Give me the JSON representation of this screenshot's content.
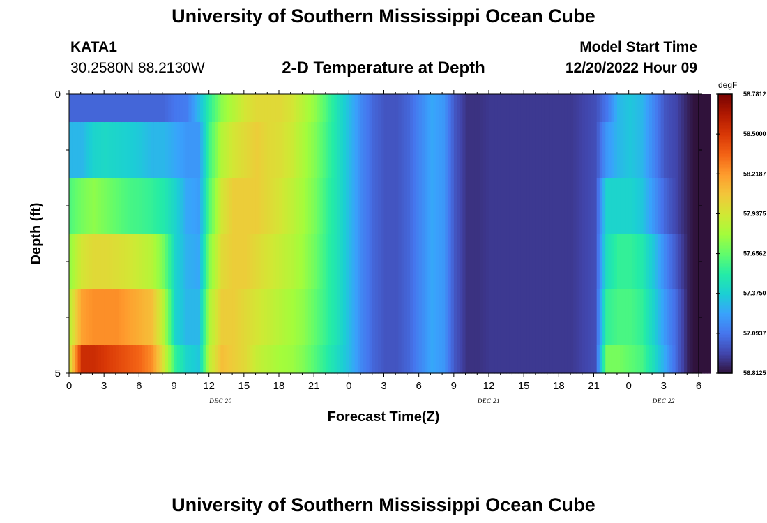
{
  "header": {
    "title": "University of Southern Mississippi Ocean Cube",
    "station": "KATA1",
    "coords": "30.2580N  88.2130W",
    "subtitle": "2-D Temperature at Depth",
    "model_start_label": "Model Start Time",
    "model_start_value": "12/20/2022 Hour 09"
  },
  "footer": {
    "title": "University of Southern Mississippi Ocean Cube"
  },
  "chart_data": {
    "type": "heatmap",
    "xlabel": "Forecast Time(Z)",
    "ylabel": "Depth (ft)",
    "x_range_hours": [
      0,
      54
    ],
    "y_ticks": [
      {
        "value": 0,
        "label": "0"
      },
      {
        "value": 5,
        "label": "5"
      }
    ],
    "x_ticks": [
      "0",
      "3",
      "6",
      "9",
      "12",
      "15",
      "18",
      "21",
      "0",
      "3",
      "6",
      "9",
      "12",
      "15",
      "18",
      "21",
      "0",
      "3",
      "6"
    ],
    "date_labels": [
      {
        "hour": 13,
        "label": "DEC 20"
      },
      {
        "hour": 36,
        "label": "DEC 21"
      },
      {
        "hour": 51,
        "label": "DEC 22"
      }
    ],
    "colorbar": {
      "units": "degF",
      "min": 56.8125,
      "max": 58.7812,
      "ticks": [
        "58.7812",
        "58.5000",
        "58.2187",
        "57.9375",
        "57.6562",
        "57.3750",
        "57.0937",
        "56.8125"
      ],
      "colors": [
        "#30123b",
        "#4145ab",
        "#4675ed",
        "#39a2fc",
        "#1bcfd4",
        "#24eca6",
        "#61fc6c",
        "#a4fc3b",
        "#d1e834",
        "#f3c63a",
        "#fe9b2d",
        "#f36315",
        "#d93806",
        "#b11901",
        "#7a0402"
      ]
    },
    "depth_layers_ft": [
      0,
      0.5,
      1.5,
      2.5,
      3.5,
      4.5
    ],
    "layer_bounds_ft": [
      0,
      0.5,
      1.5,
      2.5,
      3.5,
      4.5,
      5.0
    ],
    "hourly_temperature_degF": [
      [
        57.05,
        57.3,
        57.62,
        57.78,
        57.9,
        58.0
      ],
      [
        57.05,
        57.3,
        57.7,
        57.95,
        58.2,
        58.55
      ],
      [
        57.05,
        57.4,
        57.75,
        58.0,
        58.25,
        58.55
      ],
      [
        57.05,
        57.42,
        57.7,
        58.0,
        58.25,
        58.5
      ],
      [
        57.05,
        57.4,
        57.65,
        57.98,
        58.25,
        58.45
      ],
      [
        57.05,
        57.38,
        57.6,
        57.95,
        58.2,
        58.4
      ],
      [
        57.05,
        57.35,
        57.58,
        57.9,
        58.15,
        58.35
      ],
      [
        57.05,
        57.3,
        57.55,
        57.85,
        58.1,
        58.25
      ],
      [
        57.05,
        57.3,
        57.5,
        57.7,
        57.85,
        57.95
      ],
      [
        57.1,
        57.25,
        57.4,
        57.4,
        57.4,
        57.55
      ],
      [
        57.12,
        57.2,
        57.25,
        57.28,
        57.3,
        57.4
      ],
      [
        57.3,
        57.2,
        57.22,
        57.25,
        57.3,
        57.35
      ],
      [
        57.55,
        57.6,
        57.65,
        57.75,
        57.85,
        57.9
      ],
      [
        57.75,
        57.85,
        57.95,
        58.0,
        58.05,
        58.1
      ],
      [
        57.85,
        57.95,
        58.05,
        58.05,
        58.05,
        58.05
      ],
      [
        57.95,
        58.0,
        58.05,
        58.05,
        58.0,
        58.0
      ],
      [
        58.0,
        58.05,
        58.05,
        58.0,
        57.95,
        57.9
      ],
      [
        58.0,
        58.0,
        58.0,
        57.95,
        57.9,
        57.85
      ],
      [
        58.0,
        57.98,
        57.95,
        57.9,
        57.85,
        57.8
      ],
      [
        57.95,
        57.92,
        57.88,
        57.85,
        57.8,
        57.78
      ],
      [
        57.85,
        57.82,
        57.8,
        57.78,
        57.75,
        57.72
      ],
      [
        57.75,
        57.72,
        57.7,
        57.68,
        57.65,
        57.62
      ],
      [
        57.6,
        57.58,
        57.56,
        57.55,
        57.55,
        57.52
      ],
      [
        57.45,
        57.45,
        57.45,
        57.45,
        57.45,
        57.42
      ],
      [
        57.3,
        57.3,
        57.3,
        57.3,
        57.3,
        57.3
      ],
      [
        57.15,
        57.15,
        57.15,
        57.15,
        57.15,
        57.15
      ],
      [
        57.05,
        57.05,
        57.05,
        57.05,
        57.05,
        57.05
      ],
      [
        57.0,
        57.0,
        57.0,
        57.0,
        57.0,
        57.0
      ],
      [
        57.0,
        57.0,
        57.0,
        57.0,
        57.0,
        57.0
      ],
      [
        57.05,
        57.05,
        57.05,
        57.05,
        57.05,
        57.05
      ],
      [
        57.15,
        57.15,
        57.15,
        57.15,
        57.15,
        57.15
      ],
      [
        57.25,
        57.25,
        57.25,
        57.25,
        57.25,
        57.25
      ],
      [
        57.2,
        57.2,
        57.2,
        57.2,
        57.2,
        57.2
      ],
      [
        57.0,
        57.0,
        57.0,
        57.0,
        57.0,
        57.0
      ],
      [
        56.9,
        56.9,
        56.9,
        56.9,
        56.9,
        56.9
      ],
      [
        56.9,
        56.9,
        56.9,
        56.9,
        56.9,
        56.9
      ],
      [
        56.92,
        56.92,
        56.92,
        56.92,
        56.92,
        56.92
      ],
      [
        56.92,
        56.92,
        56.92,
        56.92,
        56.92,
        56.92
      ],
      [
        56.92,
        56.92,
        56.92,
        56.92,
        56.92,
        56.92
      ],
      [
        56.92,
        56.92,
        56.92,
        56.92,
        56.92,
        56.92
      ],
      [
        56.92,
        56.92,
        56.92,
        56.92,
        56.92,
        56.92
      ],
      [
        56.92,
        56.92,
        56.92,
        56.92,
        56.92,
        56.92
      ],
      [
        56.92,
        56.92,
        56.92,
        56.92,
        56.92,
        56.92
      ],
      [
        56.92,
        56.92,
        56.92,
        56.92,
        56.92,
        56.92
      ],
      [
        56.95,
        56.95,
        56.95,
        56.95,
        56.95,
        56.95
      ],
      [
        56.98,
        56.98,
        56.98,
        56.98,
        56.98,
        56.98
      ],
      [
        57.1,
        57.2,
        57.4,
        57.45,
        57.55,
        57.7
      ],
      [
        57.3,
        57.3,
        57.4,
        57.55,
        57.6,
        57.7
      ],
      [
        57.35,
        57.35,
        57.4,
        57.55,
        57.6,
        57.65
      ],
      [
        57.3,
        57.3,
        57.35,
        57.5,
        57.55,
        57.6
      ],
      [
        57.15,
        57.15,
        57.2,
        57.35,
        57.4,
        57.45
      ],
      [
        57.0,
        57.0,
        57.05,
        57.15,
        57.2,
        57.25
      ],
      [
        56.95,
        56.95,
        56.95,
        57.0,
        57.05,
        57.05
      ],
      [
        56.85,
        56.85,
        56.85,
        56.85,
        56.85,
        56.85
      ],
      [
        56.78,
        56.78,
        56.78,
        56.78,
        56.78,
        56.78
      ]
    ]
  }
}
